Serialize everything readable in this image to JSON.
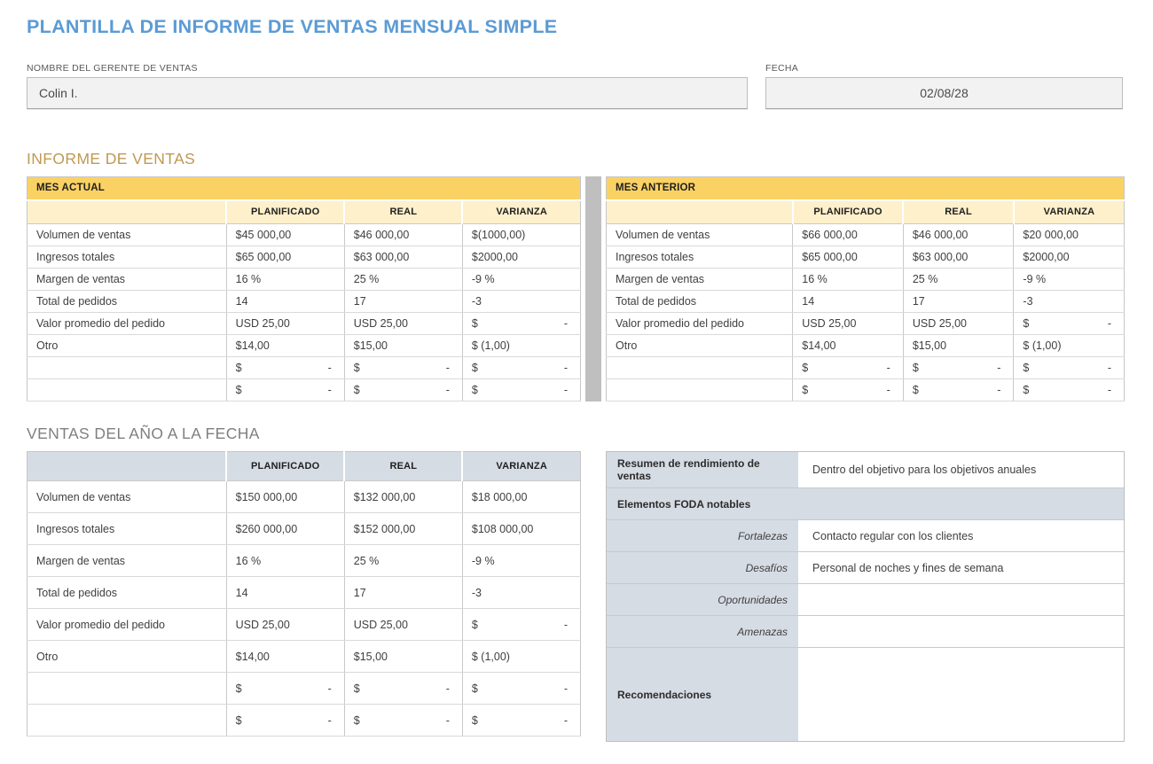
{
  "page": {
    "title": "PLANTILLA DE INFORME DE VENTAS MENSUAL SIMPLE"
  },
  "fields": {
    "manager": {
      "label": "NOMBRE DEL GERENTE DE VENTAS",
      "value": "Colin I."
    },
    "date": {
      "label": "FECHA",
      "value": "02/08/28"
    }
  },
  "sales_report": {
    "heading": "INFORME DE VENTAS",
    "columns": [
      "PLANIFICADO",
      "REAL",
      "VARIANZA"
    ],
    "current_month": {
      "title": "MES ACTUAL",
      "rows": [
        {
          "label": "Volumen de ventas",
          "values": [
            "$45 000,00",
            "$46 000,00",
            "$(1000,00)"
          ]
        },
        {
          "label": "Ingresos totales",
          "values": [
            "$65 000,00",
            "$63 000,00",
            "$2000,00"
          ]
        },
        {
          "label": "Margen de ventas",
          "values": [
            "16 %",
            "25 %",
            "-9 %"
          ]
        },
        {
          "label": "Total de pedidos",
          "values": [
            "14",
            "17",
            "-3"
          ]
        },
        {
          "label": "Valor promedio del pedido",
          "values": [
            "USD 25,00",
            "USD 25,00",
            "$ -"
          ]
        },
        {
          "label": "Otro",
          "values": [
            "$14,00",
            "$15,00",
            "$ (1,00)"
          ]
        },
        {
          "label": "",
          "values": [
            "$ -",
            "$ -",
            "$ -"
          ]
        },
        {
          "label": "",
          "values": [
            "$ -",
            "$ -",
            "$ -"
          ]
        }
      ]
    },
    "previous_month": {
      "title": "MES ANTERIOR",
      "rows": [
        {
          "label": "Volumen de ventas",
          "values": [
            "$66 000,00",
            "$46 000,00",
            "$20 000,00"
          ]
        },
        {
          "label": "Ingresos totales",
          "values": [
            "$65 000,00",
            "$63 000,00",
            "$2000,00"
          ]
        },
        {
          "label": "Margen de ventas",
          "values": [
            "16 %",
            "25 %",
            "-9 %"
          ]
        },
        {
          "label": "Total de pedidos",
          "values": [
            "14",
            "17",
            "-3"
          ]
        },
        {
          "label": "Valor promedio del pedido",
          "values": [
            "USD 25,00",
            "USD 25,00",
            "$ -"
          ]
        },
        {
          "label": "Otro",
          "values": [
            "$14,00",
            "$15,00",
            "$ (1,00)"
          ]
        },
        {
          "label": "",
          "values": [
            "$ -",
            "$ -",
            "$ -"
          ]
        },
        {
          "label": "",
          "values": [
            "$ -",
            "$ -",
            "$ -"
          ]
        }
      ]
    }
  },
  "ytd": {
    "heading": "VENTAS DEL AÑO A LA FECHA",
    "columns": [
      "PLANIFICADO",
      "REAL",
      "VARIANZA"
    ],
    "rows": [
      {
        "label": "Volumen de ventas",
        "values": [
          "$150 000,00",
          "$132 000,00",
          "$18 000,00"
        ]
      },
      {
        "label": "Ingresos totales",
        "values": [
          "$260 000,00",
          "$152 000,00",
          "$108 000,00"
        ]
      },
      {
        "label": "Margen de ventas",
        "values": [
          "16 %",
          "25 %",
          "-9 %"
        ]
      },
      {
        "label": "Total de pedidos",
        "values": [
          "14",
          "17",
          "-3"
        ]
      },
      {
        "label": "Valor promedio del pedido",
        "values": [
          "USD 25,00",
          "USD 25,00",
          "$ -"
        ]
      },
      {
        "label": "Otro",
        "values": [
          "$14,00",
          "$15,00",
          "$ (1,00)"
        ]
      },
      {
        "label": "",
        "values": [
          "$ -",
          "$ -",
          "$ -"
        ]
      },
      {
        "label": "",
        "values": [
          "$ -",
          "$ -",
          "$ -"
        ]
      }
    ]
  },
  "summary": {
    "performance_label": "Resumen de rendimiento de ventas",
    "performance_value": "Dentro del objetivo para los objetivos anuales",
    "swot_header": "Elementos FODA notables",
    "swot": [
      {
        "label": "Fortalezas",
        "value": "Contacto regular con los clientes"
      },
      {
        "label": "Desafíos",
        "value": "Personal de noches y fines de semana"
      },
      {
        "label": "Oportunidades",
        "value": ""
      },
      {
        "label": "Amenazas",
        "value": ""
      }
    ],
    "recommendations_label": "Recomendaciones",
    "recommendations_value": ""
  },
  "colors": {
    "title_blue": "#5B9BD5",
    "gold_heading": "#BF9952",
    "gray_heading": "#7F7F7F",
    "yellow_band": "#FAD264",
    "pale_yellow_header": "#FDF0CB",
    "blue_gray_header": "#D6DCE4",
    "divider_gray": "#BFBFBF",
    "field_background": "#F2F2F2"
  }
}
